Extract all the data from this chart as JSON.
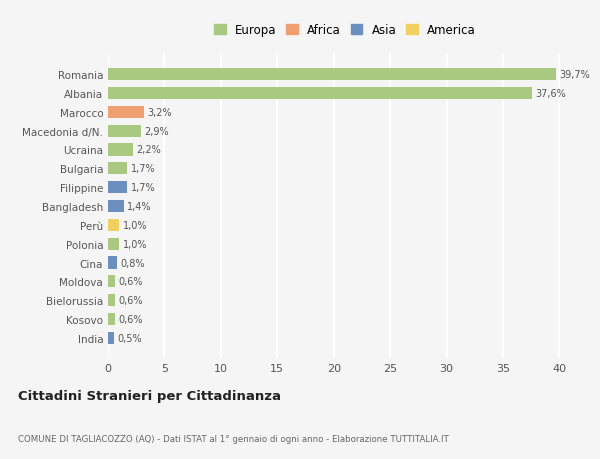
{
  "categories": [
    "India",
    "Kosovo",
    "Bielorussia",
    "Moldova",
    "Cina",
    "Polonia",
    "Perù",
    "Bangladesh",
    "Filippine",
    "Bulgaria",
    "Ucraina",
    "Macedonia d/N.",
    "Marocco",
    "Albania",
    "Romania"
  ],
  "values": [
    0.5,
    0.6,
    0.6,
    0.6,
    0.8,
    1.0,
    1.0,
    1.4,
    1.7,
    1.7,
    2.2,
    2.9,
    3.2,
    37.6,
    39.7
  ],
  "labels": [
    "0,5%",
    "0,6%",
    "0,6%",
    "0,6%",
    "0,8%",
    "1,0%",
    "1,0%",
    "1,4%",
    "1,7%",
    "1,7%",
    "2,2%",
    "2,9%",
    "3,2%",
    "37,6%",
    "39,7%"
  ],
  "continents": [
    "Asia",
    "Europa",
    "Europa",
    "Europa",
    "Asia",
    "Europa",
    "America",
    "Asia",
    "Asia",
    "Europa",
    "Europa",
    "Europa",
    "Africa",
    "Europa",
    "Europa"
  ],
  "colors": {
    "Europa": "#a8c97f",
    "Africa": "#f0a070",
    "Asia": "#6b90c0",
    "America": "#f0d060"
  },
  "legend_labels": [
    "Europa",
    "Africa",
    "Asia",
    "America"
  ],
  "legend_colors": [
    "#a8c97f",
    "#f0a070",
    "#6b90c0",
    "#f0d060"
  ],
  "xlim": [
    0,
    42
  ],
  "xticks": [
    0,
    5,
    10,
    15,
    20,
    25,
    30,
    35,
    40
  ],
  "title": "Cittadini Stranieri per Cittadinanza",
  "subtitle": "COMUNE DI TAGLIACOZZO (AQ) - Dati ISTAT al 1° gennaio di ogni anno - Elaborazione TUTTITALIA.IT",
  "bg_color": "#f5f5f5",
  "grid_color": "#ffffff",
  "bar_height": 0.65
}
